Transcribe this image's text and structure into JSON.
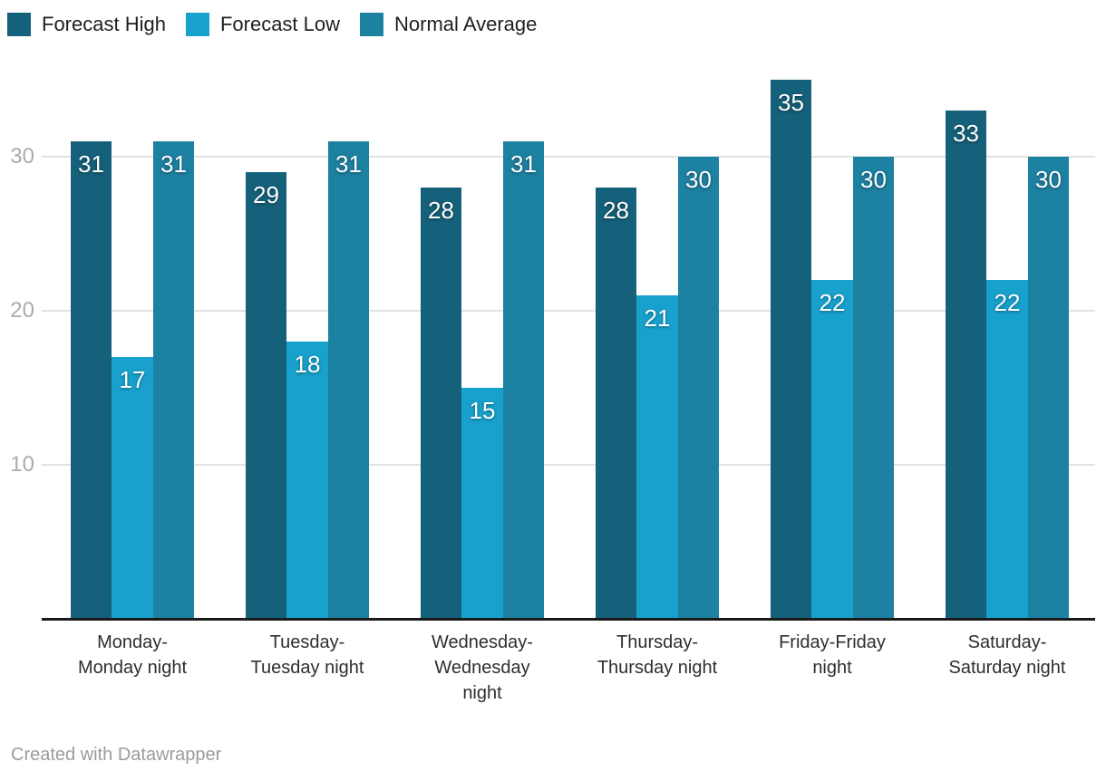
{
  "legend": {
    "position": "top-left",
    "items": [
      "Forecast High",
      "Forecast Low",
      "Normal Average"
    ]
  },
  "chart_data": {
    "type": "bar",
    "title": "",
    "categories": [
      "Monday-Monday night",
      "Tuesday-Tuesday night",
      "Wednesday-Wednesday night",
      "Thursday-Thursday night",
      "Friday-Friday night",
      "Saturday-Saturday night"
    ],
    "category_label_lines": [
      [
        "Monday-",
        "Monday night"
      ],
      [
        "Tuesday-",
        "Tuesday night"
      ],
      [
        "Wednesday-",
        "Wednesday",
        "night"
      ],
      [
        "Thursday-",
        "Thursday night"
      ],
      [
        "Friday-Friday",
        "night"
      ],
      [
        "Saturday-",
        "Saturday night"
      ]
    ],
    "series": [
      {
        "name": "Forecast High",
        "color": "#15607a",
        "values": [
          31,
          29,
          28,
          28,
          35,
          33
        ]
      },
      {
        "name": "Forecast Low",
        "color": "#18a1cd",
        "values": [
          17,
          18,
          15,
          21,
          22,
          22
        ]
      },
      {
        "name": "Normal Average",
        "color": "#1d81a2",
        "values": [
          31,
          31,
          31,
          30,
          30,
          30
        ]
      }
    ],
    "yticks": [
      10,
      20,
      30
    ],
    "ylim": [
      0,
      36
    ],
    "grid": "horizontal",
    "legend_position": "top-left",
    "value_labels": "inside-bar-top"
  },
  "colors": {
    "background": "#ffffff",
    "grid_line": "#e2e2e2",
    "axis_line": "#1a1a1a",
    "tick_label": "#acacac",
    "category_label": "#2e2e2e",
    "value_label": "#ffffff",
    "legend_label": "#1f1f1f",
    "credit": "#9b9b9b"
  },
  "footer": {
    "credit": "Created with Datawrapper"
  }
}
